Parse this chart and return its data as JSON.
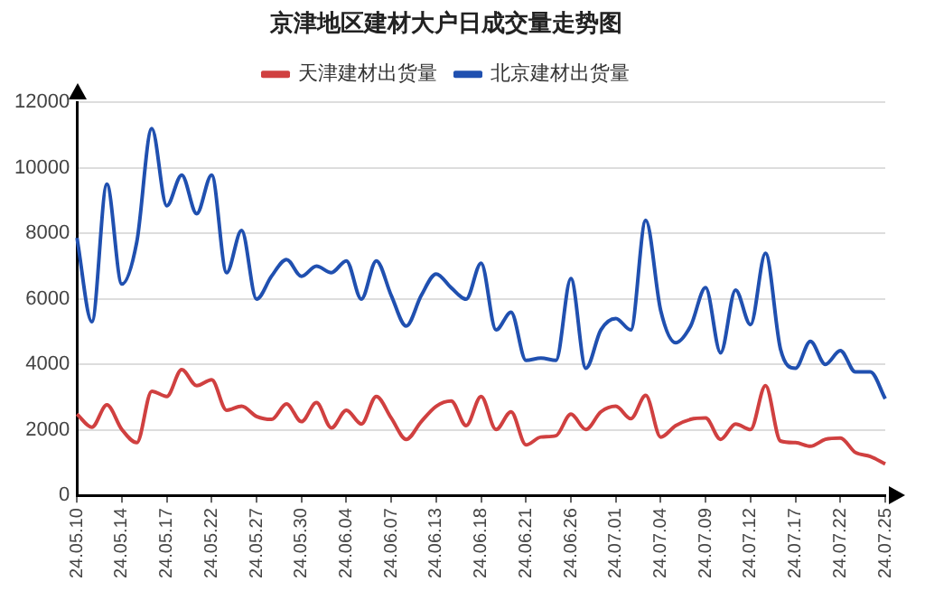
{
  "chart_data": {
    "type": "line",
    "title": "京津地区建材大户日成交量走势图",
    "categories": [
      "24.05.10",
      null,
      null,
      "24.05.14",
      null,
      null,
      "24.05.17",
      null,
      null,
      "24.05.22",
      null,
      null,
      "24.05.27",
      null,
      null,
      "24.05.30",
      null,
      null,
      "24.06.04",
      null,
      null,
      "24.06.07",
      null,
      null,
      "24.06.13",
      null,
      null,
      "24.06.18",
      null,
      null,
      "24.06.21",
      null,
      null,
      "24.06.26",
      null,
      null,
      "24.07.01",
      null,
      null,
      "24.07.04",
      null,
      null,
      "24.07.09",
      null,
      null,
      "24.07.12",
      null,
      null,
      "24.07.17",
      null,
      null,
      "24.07.22",
      null,
      null,
      "24.07.25"
    ],
    "series": [
      {
        "name": "天津建材出货量",
        "color": "#d04040",
        "values": [
          2480,
          2080,
          2760,
          2010,
          1610,
          3180,
          3020,
          3840,
          3350,
          3530,
          2600,
          2720,
          2410,
          2320,
          2790,
          2250,
          2830,
          2060,
          2600,
          2180,
          3020,
          2360,
          1710,
          2250,
          2720,
          2880,
          2130,
          3020,
          2010,
          2550,
          1540,
          1780,
          1820,
          2480,
          2010,
          2550,
          2720,
          2340,
          3050,
          1780,
          2130,
          2320,
          2360,
          1710,
          2180,
          2010,
          3350,
          1660,
          1610,
          1500,
          1710,
          1750,
          1310,
          1190,
          960
        ]
      },
      {
        "name": "北京建材出货量",
        "color": "#2050b0",
        "values": [
          7860,
          5300,
          9500,
          6450,
          7740,
          11200,
          8840,
          9780,
          8600,
          9780,
          6800,
          8090,
          5990,
          6690,
          7200,
          6690,
          7000,
          6800,
          7160,
          5990,
          7160,
          6100,
          5170,
          6100,
          6760,
          6340,
          5990,
          7090,
          5050,
          5590,
          4120,
          4190,
          4120,
          6620,
          3880,
          5050,
          5400,
          5050,
          8400,
          5640,
          4660,
          5170,
          6340,
          4350,
          6270,
          5210,
          7390,
          4470,
          3880,
          4700,
          4000,
          4420,
          3770,
          3770,
          2950
        ]
      }
    ],
    "ylim": [
      0,
      12000
    ],
    "yticks": [
      0,
      2000,
      4000,
      6000,
      8000,
      10000,
      12000
    ],
    "grid": "y",
    "legend": "top",
    "marker": "none",
    "line_style": "solid"
  }
}
